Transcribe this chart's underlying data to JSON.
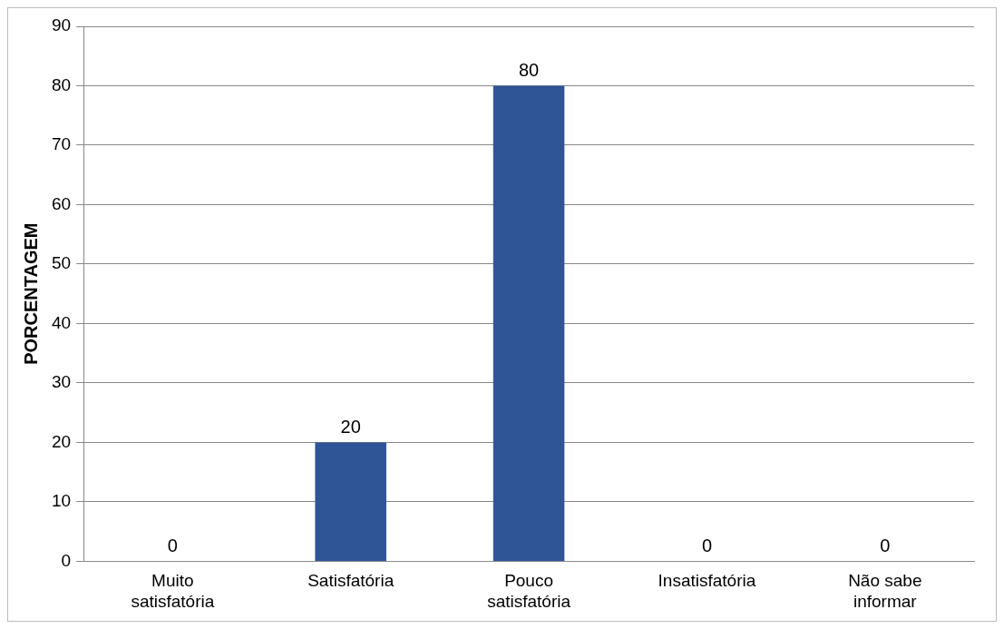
{
  "chart_data": {
    "type": "bar",
    "ylabel": "PORCENTAGEM",
    "categories": [
      "Muito satisfatória",
      "Satisfatória",
      "Pouco satisfatória",
      "Insatisfatória",
      "Não sabe informar"
    ],
    "values": [
      0,
      20,
      80,
      0,
      0
    ],
    "color": "#2f5597",
    "ylim": [
      0,
      90
    ],
    "yticks": [
      0,
      10,
      20,
      30,
      40,
      50,
      60,
      70,
      80,
      90
    ],
    "grid": "y",
    "data_labels": true,
    "legend": false
  }
}
